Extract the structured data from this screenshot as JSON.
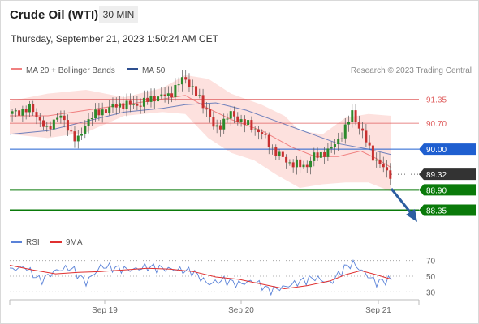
{
  "header": {
    "title": "Crude Oil (WTI)",
    "interval": "30 MIN",
    "timestamp": "Thursday, September 21, 2023 1:50:24 AM CET"
  },
  "legend": {
    "ma20_bb": "MA 20 + Bollinger Bands",
    "ma50": "MA 50",
    "copyright": "Research © 2023 Trading Central",
    "rsi": "RSI",
    "rsi_ma": "9MA"
  },
  "colors": {
    "bb_fill": "#fcd9d6",
    "ma20": "#f08080",
    "ma50": "#4060b0",
    "resistance": "#e06060",
    "pivot": "#1f5fd0",
    "support": "#0a7a0a",
    "last": "#333333",
    "candle_up": "#2c8a2c",
    "candle_down": "#c83030",
    "arrow": "#2b5da0",
    "rsi_line": "#5a82d8",
    "rsi_ma_line": "#e03030"
  },
  "chart_data": [
    {
      "type": "candlestick",
      "ylim": [
        87.9,
        91.95
      ],
      "x_ticks": [
        "Sep 19",
        "Sep 20",
        "Sep 21"
      ],
      "levels": [
        {
          "label": "91.35",
          "value": 91.35,
          "kind": "resistance"
        },
        {
          "label": "90.70",
          "value": 90.7,
          "kind": "resistance"
        },
        {
          "label": "90.00",
          "value": 90.0,
          "kind": "pivot"
        },
        {
          "label": "89.32",
          "value": 89.32,
          "kind": "last"
        },
        {
          "label": "88.90",
          "value": 88.9,
          "kind": "support"
        },
        {
          "label": "88.35",
          "value": 88.35,
          "kind": "support"
        }
      ],
      "close_path": [
        [
          0,
          90.95
        ],
        [
          6,
          91.1
        ],
        [
          10,
          90.5
        ],
        [
          13,
          90.95
        ],
        [
          18,
          90.2
        ],
        [
          21,
          90.85
        ],
        [
          25,
          91.05
        ],
        [
          29,
          91.2
        ],
        [
          34,
          91.2
        ],
        [
          38,
          91.4
        ],
        [
          42,
          91.45
        ],
        [
          46,
          91.95
        ],
        [
          50,
          91.35
        ],
        [
          52,
          91.05
        ],
        [
          54,
          90.5
        ],
        [
          58,
          90.95
        ],
        [
          62,
          90.7
        ],
        [
          66,
          90.45
        ],
        [
          70,
          89.9
        ],
        [
          74,
          89.6
        ],
        [
          78,
          89.55
        ],
        [
          80,
          89.8
        ],
        [
          84,
          89.95
        ],
        [
          88,
          90.5
        ],
        [
          90,
          91.0
        ],
        [
          92,
          90.55
        ],
        [
          94,
          90.15
        ],
        [
          96,
          89.7
        ],
        [
          100,
          89.32
        ]
      ],
      "ma20": [
        [
          0,
          90.9
        ],
        [
          10,
          90.9
        ],
        [
          20,
          91.05
        ],
        [
          30,
          91.2
        ],
        [
          40,
          91.35
        ],
        [
          46,
          91.45
        ],
        [
          52,
          91.1
        ],
        [
          58,
          90.8
        ],
        [
          66,
          90.5
        ],
        [
          74,
          90.05
        ],
        [
          80,
          89.8
        ],
        [
          86,
          89.8
        ],
        [
          92,
          89.95
        ],
        [
          96,
          89.75
        ],
        [
          100,
          89.5
        ]
      ],
      "bb_upper": [
        [
          0,
          91.3
        ],
        [
          10,
          91.5
        ],
        [
          20,
          91.6
        ],
        [
          30,
          91.4
        ],
        [
          40,
          91.65
        ],
        [
          46,
          92.0
        ],
        [
          52,
          91.9
        ],
        [
          58,
          91.5
        ],
        [
          66,
          91.2
        ],
        [
          72,
          90.9
        ],
        [
          76,
          90.5
        ],
        [
          82,
          90.4
        ],
        [
          88,
          90.85
        ],
        [
          94,
          90.95
        ],
        [
          100,
          90.9
        ]
      ],
      "bb_lower": [
        [
          0,
          90.4
        ],
        [
          10,
          90.3
        ],
        [
          20,
          90.45
        ],
        [
          30,
          90.9
        ],
        [
          40,
          91.0
        ],
        [
          46,
          90.95
        ],
        [
          52,
          90.3
        ],
        [
          58,
          89.9
        ],
        [
          64,
          89.7
        ],
        [
          70,
          89.3
        ],
        [
          76,
          88.95
        ],
        [
          82,
          89.05
        ],
        [
          88,
          89.1
        ],
        [
          94,
          89.1
        ],
        [
          100,
          88.85
        ]
      ],
      "ma50": [
        [
          0,
          90.4
        ],
        [
          10,
          90.5
        ],
        [
          20,
          90.75
        ],
        [
          30,
          91.0
        ],
        [
          40,
          91.1
        ],
        [
          46,
          91.2
        ],
        [
          54,
          91.25
        ],
        [
          62,
          91.05
        ],
        [
          70,
          90.75
        ],
        [
          78,
          90.45
        ],
        [
          86,
          90.15
        ],
        [
          94,
          90.0
        ],
        [
          100,
          89.85
        ]
      ]
    },
    {
      "type": "line",
      "title": "RSI",
      "ylim": [
        20,
        80
      ],
      "y_ticks": [
        "70",
        "50",
        "30"
      ],
      "series": [
        {
          "name": "RSI",
          "values": [
            [
              0,
              58
            ],
            [
              4,
              62
            ],
            [
              8,
              44
            ],
            [
              12,
              57
            ],
            [
              16,
              61
            ],
            [
              20,
              42
            ],
            [
              24,
              63
            ],
            [
              28,
              60
            ],
            [
              32,
              58
            ],
            [
              36,
              62
            ],
            [
              40,
              60
            ],
            [
              44,
              58
            ],
            [
              48,
              56
            ],
            [
              52,
              40
            ],
            [
              56,
              45
            ],
            [
              60,
              40
            ],
            [
              64,
              44
            ],
            [
              68,
              32
            ],
            [
              72,
              36
            ],
            [
              76,
              43
            ],
            [
              80,
              48
            ],
            [
              84,
              41
            ],
            [
              88,
              62
            ],
            [
              90,
              66
            ],
            [
              92,
              58
            ],
            [
              94,
              50
            ],
            [
              96,
              42
            ],
            [
              100,
              46
            ]
          ]
        },
        {
          "name": "9MA",
          "values": [
            [
              0,
              64
            ],
            [
              6,
              58
            ],
            [
              12,
              53
            ],
            [
              18,
              55
            ],
            [
              24,
              56
            ],
            [
              30,
              58
            ],
            [
              36,
              60
            ],
            [
              42,
              59
            ],
            [
              48,
              56
            ],
            [
              54,
              49
            ],
            [
              60,
              46
            ],
            [
              66,
              40
            ],
            [
              72,
              34
            ],
            [
              78,
              38
            ],
            [
              84,
              44
            ],
            [
              88,
              52
            ],
            [
              92,
              57
            ],
            [
              96,
              52
            ],
            [
              100,
              46
            ]
          ]
        }
      ]
    }
  ]
}
